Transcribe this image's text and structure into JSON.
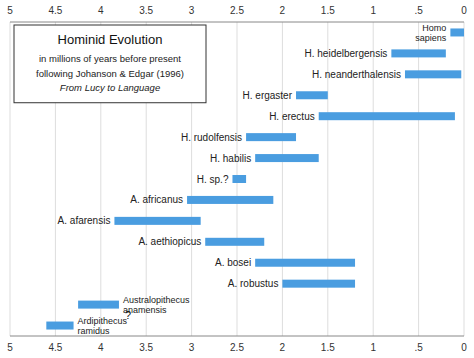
{
  "chart_data": {
    "type": "bar",
    "orientation": "horizontal",
    "title": "Hominid Evolution",
    "subtitle": "in millions of years before present",
    "annotations": [
      {
        "text": "following Johanson & Edgar (1996)"
      },
      {
        "text": "From Lucy to Language"
      },
      {
        "text": "?"
      }
    ],
    "categories": [
      "Homo\nsapiens",
      "H. heidelbergensis",
      "H. neanderthalensis",
      "H. ergaster",
      "H. erectus",
      "H. rudolfensis",
      "H. habilis",
      "H. sp.?",
      "A. africanus",
      "A. afarensis",
      "A. aethiopicus",
      "A. bosei",
      "A. robustus",
      "Australopithecus\nanamensis",
      "Ardipithecus\nramidus"
    ],
    "starts": [
      0.0,
      0.2,
      0.03,
      1.5,
      0.1,
      1.85,
      1.6,
      2.4,
      2.1,
      2.9,
      2.2,
      1.2,
      1.2,
      3.8,
      4.3
    ],
    "values": [
      0.15,
      0.8,
      0.65,
      1.85,
      1.6,
      2.4,
      2.3,
      2.55,
      3.05,
      3.85,
      2.85,
      2.3,
      2.0,
      4.25,
      4.6
    ],
    "color": "#4a9de0",
    "xlim": [
      5,
      0
    ],
    "xticks": [
      0,
      {
        "value": 0.5,
        "label": ".5"
      },
      1,
      1.5,
      2,
      2.5,
      3,
      3.5,
      4,
      4.5,
      5
    ],
    "grid": true
  }
}
